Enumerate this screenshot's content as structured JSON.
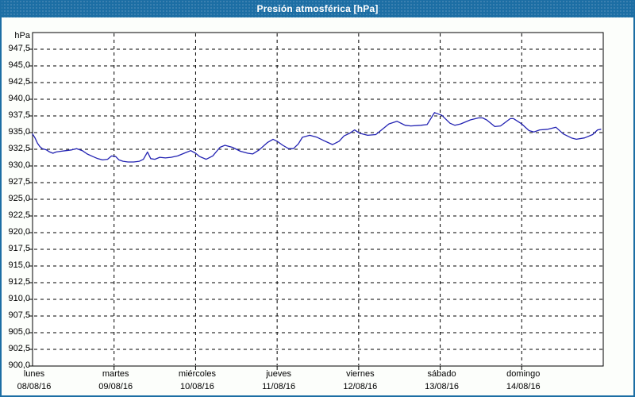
{
  "window": {
    "title": "Presión atmosférica [hPa]"
  },
  "colors": {
    "titlebar": "#1C6EA4",
    "window_border": "#1C6EA4",
    "background": "#FCFEFB",
    "plot_background": "#FFFFFF",
    "grid": "#000000",
    "frame": "#000000",
    "line": "#2222B2",
    "title_text": "#FFFFFF",
    "axis_text": "#000000"
  },
  "chart_data": {
    "type": "line",
    "title": "Presión atmosférica [hPa]",
    "unit_label": "hPa",
    "ylabel": "hPa",
    "ylim": [
      900,
      950
    ],
    "y_tick_step": 2.5,
    "grid": "dashed",
    "legend_position": "none",
    "y_ticks": [
      {
        "v": 947.5,
        "label": "947,5"
      },
      {
        "v": 945.0,
        "label": "945,0"
      },
      {
        "v": 942.5,
        "label": "942,5"
      },
      {
        "v": 940.0,
        "label": "940,0"
      },
      {
        "v": 937.5,
        "label": "937,5"
      },
      {
        "v": 935.0,
        "label": "935,0"
      },
      {
        "v": 932.5,
        "label": "932,5"
      },
      {
        "v": 930.0,
        "label": "930,0"
      },
      {
        "v": 927.5,
        "label": "927,5"
      },
      {
        "v": 925.0,
        "label": "925,0"
      },
      {
        "v": 922.5,
        "label": "922,5"
      },
      {
        "v": 920.0,
        "label": "920,0"
      },
      {
        "v": 917.5,
        "label": "917,5"
      },
      {
        "v": 915.0,
        "label": "915,0"
      },
      {
        "v": 912.5,
        "label": "912,5"
      },
      {
        "v": 910.0,
        "label": "910,0"
      },
      {
        "v": 907.5,
        "label": "907,5"
      },
      {
        "v": 905.0,
        "label": "905,0"
      },
      {
        "v": 902.5,
        "label": "902,5"
      },
      {
        "v": 900.0,
        "label": "900,0"
      }
    ],
    "x_days": [
      {
        "name": "lunes",
        "date": "08/08/16"
      },
      {
        "name": "martes",
        "date": "09/08/16"
      },
      {
        "name": "miércoles",
        "date": "10/08/16"
      },
      {
        "name": "jueves",
        "date": "11/08/16"
      },
      {
        "name": "viernes",
        "date": "12/08/16"
      },
      {
        "name": "sábado",
        "date": "13/08/16"
      },
      {
        "name": "domingo",
        "date": "14/08/16"
      }
    ],
    "series": [
      {
        "name": "Presión atmosférica",
        "points": [
          [
            0.0,
            934.8
          ],
          [
            0.03,
            934.2
          ],
          [
            0.06,
            933.4
          ],
          [
            0.09,
            932.9
          ],
          [
            0.12,
            932.6
          ],
          [
            0.17,
            932.4
          ],
          [
            0.21,
            932.1
          ],
          [
            0.25,
            931.9
          ],
          [
            0.29,
            932.1
          ],
          [
            0.35,
            932.2
          ],
          [
            0.41,
            932.3
          ],
          [
            0.48,
            932.4
          ],
          [
            0.54,
            932.6
          ],
          [
            0.61,
            932.3
          ],
          [
            0.67,
            931.8
          ],
          [
            0.74,
            931.4
          ],
          [
            0.8,
            931.1
          ],
          [
            0.86,
            930.9
          ],
          [
            0.92,
            931.0
          ],
          [
            0.97,
            931.5
          ],
          [
            1.02,
            931.4
          ],
          [
            1.06,
            930.9
          ],
          [
            1.11,
            930.7
          ],
          [
            1.17,
            930.6
          ],
          [
            1.24,
            930.6
          ],
          [
            1.31,
            930.7
          ],
          [
            1.36,
            931.0
          ],
          [
            1.41,
            932.1
          ],
          [
            1.45,
            931.1
          ],
          [
            1.5,
            931.0
          ],
          [
            1.56,
            931.3
          ],
          [
            1.63,
            931.2
          ],
          [
            1.7,
            931.3
          ],
          [
            1.78,
            931.5
          ],
          [
            1.86,
            931.9
          ],
          [
            1.94,
            932.3
          ],
          [
            2.0,
            931.9
          ],
          [
            2.05,
            931.4
          ],
          [
            2.13,
            931.0
          ],
          [
            2.21,
            931.5
          ],
          [
            2.3,
            932.8
          ],
          [
            2.36,
            933.1
          ],
          [
            2.45,
            932.8
          ],
          [
            2.55,
            932.2
          ],
          [
            2.64,
            931.9
          ],
          [
            2.7,
            931.8
          ],
          [
            2.78,
            932.4
          ],
          [
            2.88,
            933.5
          ],
          [
            2.95,
            934.0
          ],
          [
            3.0,
            933.7
          ],
          [
            3.07,
            933.1
          ],
          [
            3.14,
            932.6
          ],
          [
            3.2,
            932.6
          ],
          [
            3.26,
            933.3
          ],
          [
            3.31,
            934.3
          ],
          [
            3.4,
            934.6
          ],
          [
            3.49,
            934.3
          ],
          [
            3.59,
            933.7
          ],
          [
            3.68,
            933.2
          ],
          [
            3.76,
            933.7
          ],
          [
            3.82,
            934.5
          ],
          [
            3.89,
            934.9
          ],
          [
            3.95,
            935.4
          ],
          [
            4.01,
            934.9
          ],
          [
            4.11,
            934.6
          ],
          [
            4.21,
            934.7
          ],
          [
            4.3,
            935.6
          ],
          [
            4.37,
            936.3
          ],
          [
            4.47,
            936.7
          ],
          [
            4.57,
            936.1
          ],
          [
            4.64,
            936.0
          ],
          [
            4.76,
            936.1
          ],
          [
            4.84,
            936.2
          ],
          [
            4.93,
            938.0
          ],
          [
            5.02,
            937.6
          ],
          [
            5.12,
            936.4
          ],
          [
            5.18,
            936.1
          ],
          [
            5.25,
            936.3
          ],
          [
            5.37,
            936.9
          ],
          [
            5.47,
            937.2
          ],
          [
            5.52,
            937.2
          ],
          [
            5.57,
            936.9
          ],
          [
            5.67,
            935.9
          ],
          [
            5.74,
            936.0
          ],
          [
            5.86,
            937.1
          ],
          [
            5.9,
            937.1
          ],
          [
            5.95,
            936.7
          ],
          [
            6.0,
            936.3
          ],
          [
            6.09,
            935.3
          ],
          [
            6.15,
            935.1
          ],
          [
            6.22,
            935.4
          ],
          [
            6.32,
            935.5
          ],
          [
            6.42,
            935.8
          ],
          [
            6.51,
            934.8
          ],
          [
            6.61,
            934.2
          ],
          [
            6.67,
            934.0
          ],
          [
            6.77,
            934.2
          ],
          [
            6.87,
            934.7
          ],
          [
            6.93,
            935.4
          ],
          [
            6.97,
            935.5
          ]
        ]
      }
    ]
  }
}
